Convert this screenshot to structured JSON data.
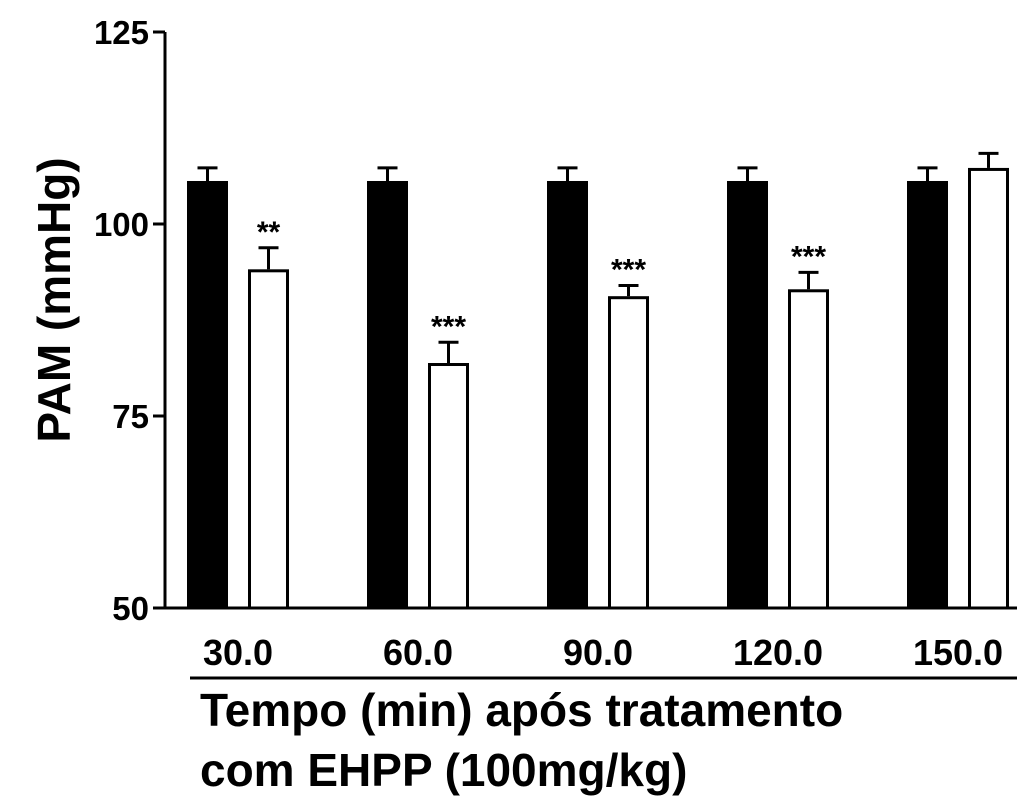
{
  "chart_data": {
    "type": "bar",
    "categories": [
      "30.0",
      "60.0",
      "90.0",
      "120.0",
      "150.0"
    ],
    "series": [
      {
        "fill": "#000000",
        "values": [
          105.6,
          105.6,
          105.6,
          105.6,
          105.6
        ],
        "errors": [
          1.7,
          1.7,
          1.7,
          1.7,
          1.7
        ]
      },
      {
        "fill": "#ffffff",
        "values": [
          94.1,
          81.9,
          90.6,
          91.5,
          107.3
        ],
        "errors": [
          2.8,
          2.7,
          1.4,
          2.2,
          1.9
        ]
      }
    ],
    "significance": [
      "**",
      "***",
      "***",
      "***",
      ""
    ],
    "ylabel": "PAM (mmHg)",
    "xlabel_lines": [
      "Tempo (min) após tratamento",
      "com EHPP (100mg/kg)"
    ],
    "ylim": [
      50,
      125
    ],
    "yticks": [
      "50",
      "75",
      "100",
      "125"
    ],
    "grid": false,
    "legend": "none"
  }
}
